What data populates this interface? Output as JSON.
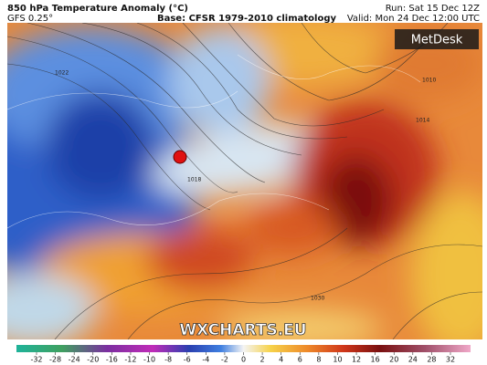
{
  "header": {
    "title": "850 hPa Temperature Anomaly (°C)",
    "model": "GFS 0.25°",
    "base": "Base: CFSR 1979-2010 climatology",
    "run": "Run: Sat 15 Dec 12Z",
    "valid": "Valid: Mon 24 Dec 12:00 UTC"
  },
  "logo": "MetDesk",
  "watermark": "WXCHARTS.EU",
  "contour_labels": [
    "1022",
    "1018",
    "1030",
    "1014",
    "1010"
  ],
  "colorbar": {
    "ticks": [
      -32,
      -28,
      -24,
      -20,
      -16,
      -12,
      -10,
      -8,
      -6,
      -4,
      -2,
      0,
      2,
      4,
      6,
      8,
      10,
      12,
      16,
      20,
      24,
      28,
      32
    ]
  }
}
